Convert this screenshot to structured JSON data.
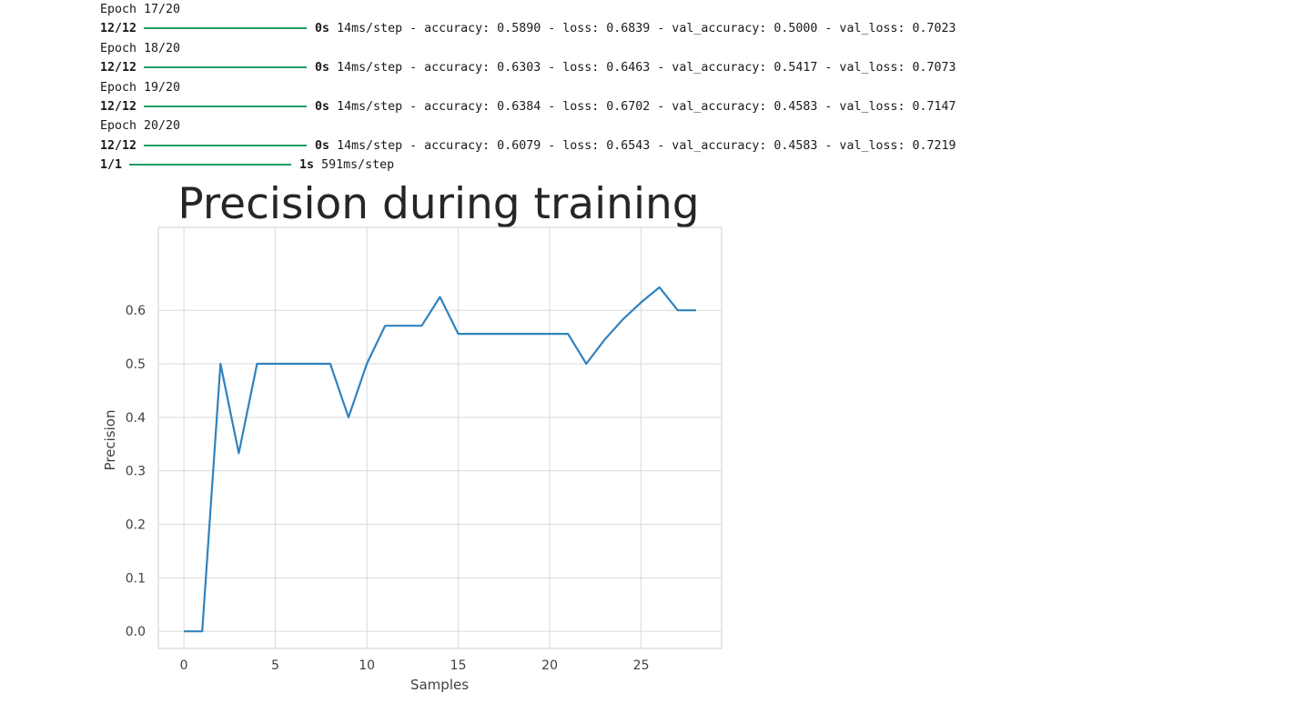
{
  "console": {
    "lines": [
      {
        "kind": "epoch",
        "text": "Epoch 17/20"
      },
      {
        "kind": "step",
        "prefix": "12/12",
        "time": "0s",
        "rest": "14ms/step - accuracy: 0.5890 - loss: 0.6839 - val_accuracy: 0.5000 - val_loss: 0.7023"
      },
      {
        "kind": "epoch",
        "text": "Epoch 18/20"
      },
      {
        "kind": "step",
        "prefix": "12/12",
        "time": "0s",
        "rest": "14ms/step - accuracy: 0.6303 - loss: 0.6463 - val_accuracy: 0.5417 - val_loss: 0.7073"
      },
      {
        "kind": "epoch",
        "text": "Epoch 19/20"
      },
      {
        "kind": "step",
        "prefix": "12/12",
        "time": "0s",
        "rest": "14ms/step - accuracy: 0.6384 - loss: 0.6702 - val_accuracy: 0.4583 - val_loss: 0.7147"
      },
      {
        "kind": "epoch",
        "text": "Epoch 20/20"
      },
      {
        "kind": "step",
        "prefix": "12/12",
        "time": "0s",
        "rest": "14ms/step - accuracy: 0.6079 - loss: 0.6543 - val_accuracy: 0.4583 - val_loss: 0.7219"
      },
      {
        "kind": "step",
        "prefix": "1/1",
        "time": "1s",
        "rest": "591ms/step"
      }
    ],
    "progress_color": "#1e9e67"
  },
  "chart_data": {
    "type": "line",
    "title": "Precision during training",
    "xlabel": "Samples",
    "ylabel": "Precision",
    "xlim": [
      -1.4,
      29.4
    ],
    "ylim": [
      -0.032,
      0.755
    ],
    "xticks": [
      0,
      5,
      10,
      15,
      20,
      25
    ],
    "yticks": [
      0.0,
      0.1,
      0.2,
      0.3,
      0.4,
      0.5,
      0.6
    ],
    "grid": true,
    "series": [
      {
        "color": "#3182bd",
        "x": [
          0,
          1,
          2,
          3,
          4,
          5,
          6,
          7,
          8,
          9,
          10,
          11,
          12,
          13,
          14,
          15,
          16,
          17,
          18,
          19,
          20,
          21,
          22,
          23,
          24,
          25,
          26,
          27,
          28
        ],
        "y": [
          0.0,
          0.0,
          0.5,
          0.333,
          0.5,
          0.5,
          0.5,
          0.5,
          0.5,
          0.4,
          0.5,
          0.571,
          0.571,
          0.571,
          0.625,
          0.556,
          0.556,
          0.556,
          0.556,
          0.556,
          0.556,
          0.556,
          0.5,
          0.545,
          0.583,
          0.615,
          0.643,
          0.6,
          0.6
        ]
      }
    ]
  }
}
